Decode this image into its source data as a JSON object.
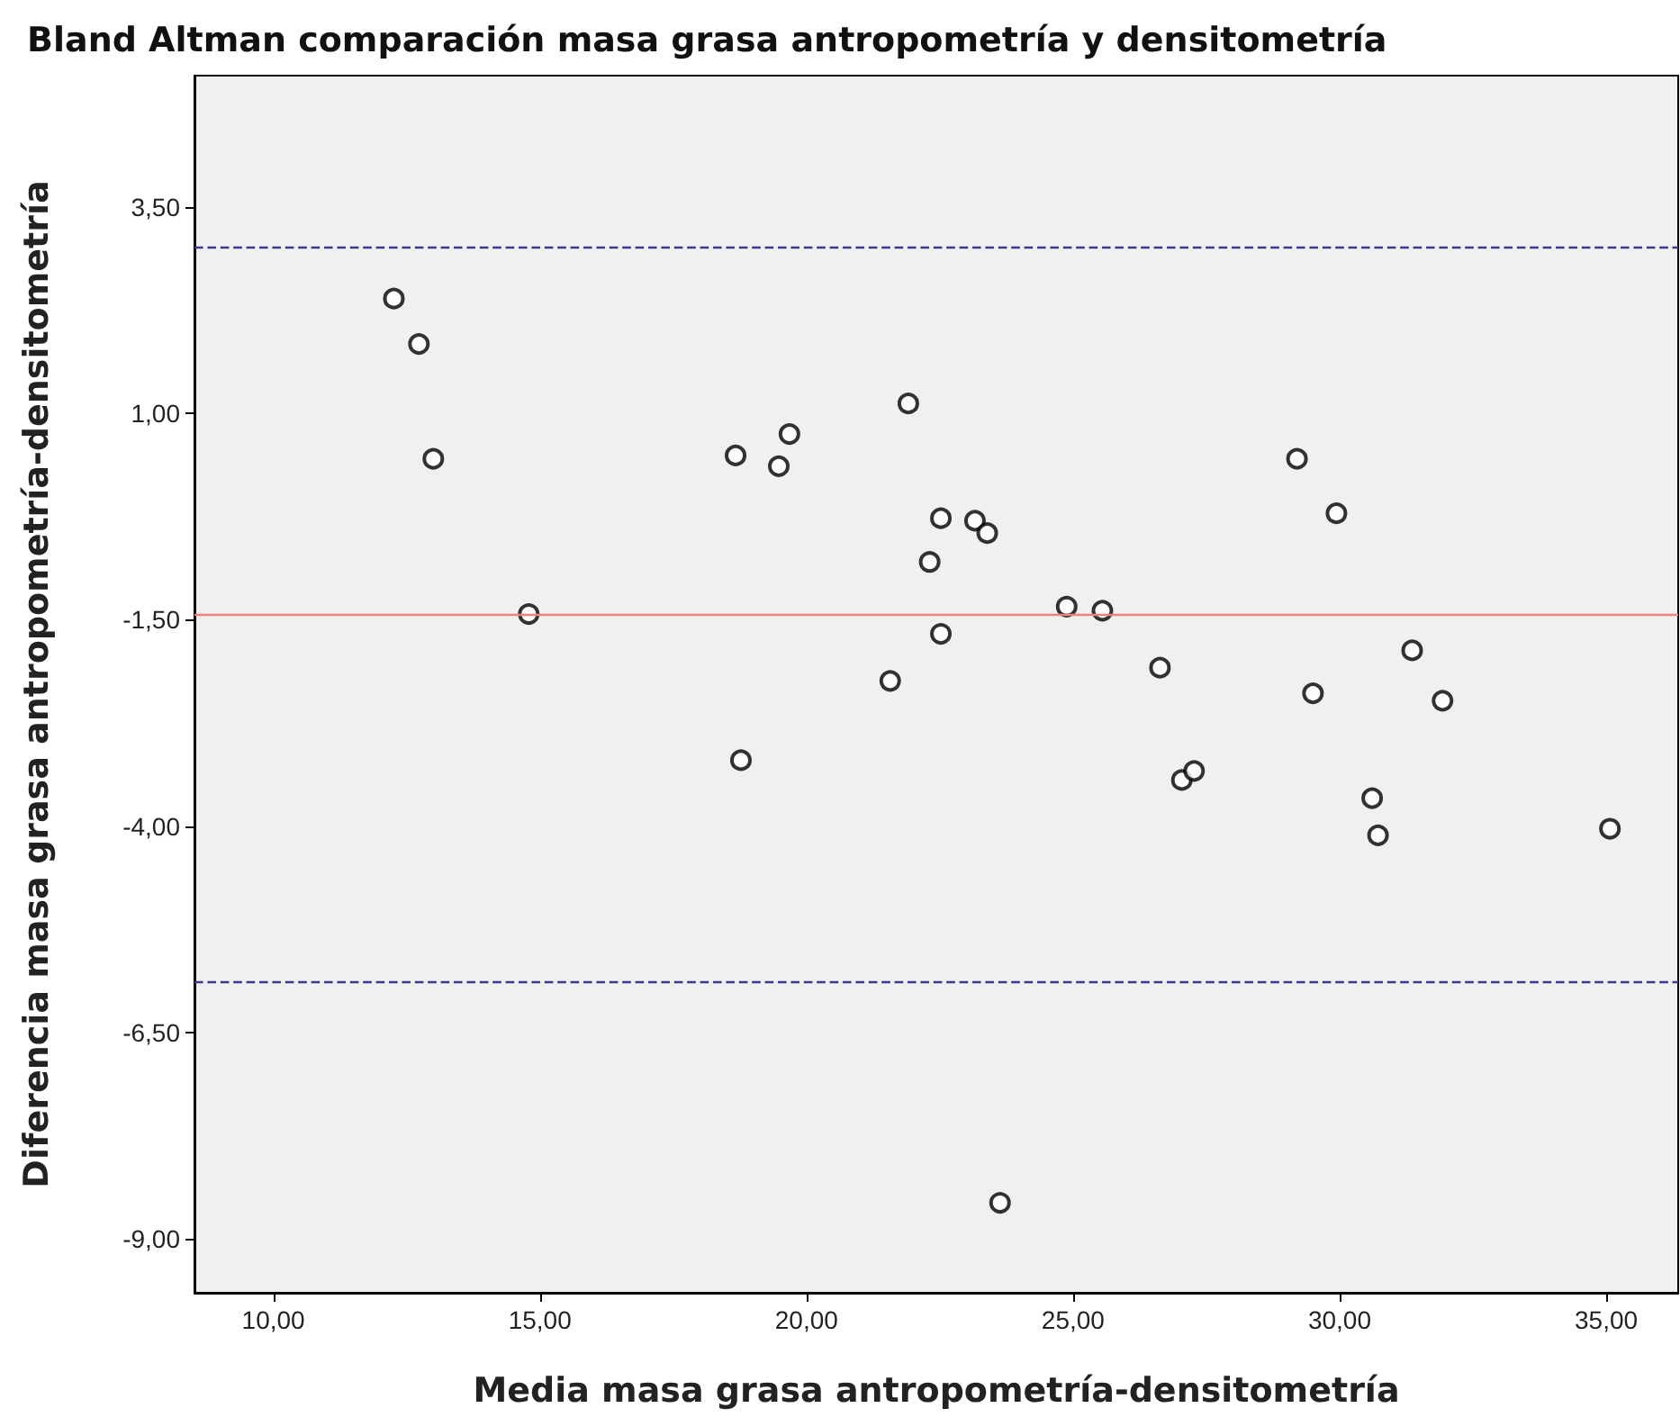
{
  "chart_data": {
    "type": "scatter",
    "title": "Bland Altman comparación masa grasa antropometría y densitometría",
    "xlabel": "Media masa grasa antropometría-densitometría",
    "ylabel": "Diferencia masa grasa antropometría-densitometría",
    "x": [
      12.26,
      12.73,
      13.0,
      14.79,
      18.67,
      18.77,
      19.48,
      19.68,
      21.91,
      21.57,
      22.31,
      22.52,
      22.52,
      23.16,
      23.39,
      23.63,
      24.88,
      25.55,
      26.63,
      27.04,
      27.27,
      29.2,
      29.5,
      29.94,
      30.61,
      30.72,
      31.36,
      31.93,
      35.07
    ],
    "series": [
      {
        "color": "#000000",
        "values": [
          2.39,
          1.84,
          0.45,
          -1.43,
          0.49,
          -3.2,
          0.36,
          0.75,
          1.12,
          -2.24,
          -0.8,
          -0.27,
          -1.67,
          -0.3,
          -0.45,
          -8.56,
          -1.34,
          -1.39,
          -2.08,
          -3.44,
          -3.33,
          0.45,
          -2.39,
          -0.21,
          -3.66,
          -4.11,
          -1.87,
          -2.48,
          -4.03
        ]
      }
    ],
    "marker": "circle",
    "grid": false,
    "xlim": [
      8.52,
      36.35
    ],
    "ylim": [
      -9.65,
      5.09
    ],
    "xticks": [
      {
        "value": 10,
        "label": "10,00"
      },
      {
        "value": 15,
        "label": "15,00"
      },
      {
        "value": 20,
        "label": "20,00"
      },
      {
        "value": 25,
        "label": "25,00"
      },
      {
        "value": 30,
        "label": "30,00"
      },
      {
        "value": 35,
        "label": "35,00"
      }
    ],
    "yticks": [
      {
        "value": -9,
        "label": "-9,00"
      },
      {
        "value": -6.5,
        "label": "-6,50"
      },
      {
        "value": -4,
        "label": "-4,00"
      },
      {
        "value": -1.5,
        "label": "-1,50"
      },
      {
        "value": 1,
        "label": "1,00"
      },
      {
        "value": 3.5,
        "label": "3,50"
      }
    ],
    "ref_lines": [
      {
        "axis": "y",
        "value": 3.02,
        "color": "#3a3a8c",
        "line_style": "dashed"
      },
      {
        "axis": "y",
        "value": -1.43,
        "color": "#f08080",
        "line_style": "solid"
      },
      {
        "axis": "y",
        "value": -5.88,
        "color": "#3a3a8c",
        "line_style": "dashed"
      }
    ]
  }
}
